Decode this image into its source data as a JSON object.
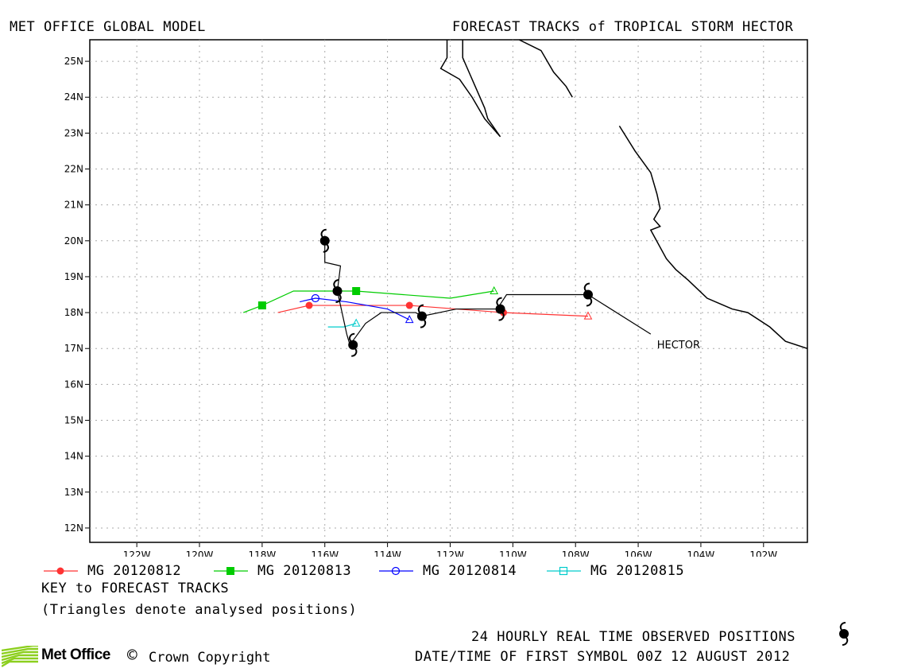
{
  "header": {
    "left_title": "MET OFFICE GLOBAL MODEL",
    "right_title": "FORECAST TRACKS of TROPICAL STORM HECTOR"
  },
  "map": {
    "lon_range": [
      -123.5,
      -100.6
    ],
    "lat_range": [
      11.6,
      25.6
    ],
    "lon_ticks": [
      {
        "value": -122,
        "label": "122W"
      },
      {
        "value": -120,
        "label": "120W"
      },
      {
        "value": -118,
        "label": "118W"
      },
      {
        "value": -116,
        "label": "116W"
      },
      {
        "value": -114,
        "label": "114W"
      },
      {
        "value": -112,
        "label": "112W"
      },
      {
        "value": -110,
        "label": "110W"
      },
      {
        "value": -108,
        "label": "108W"
      },
      {
        "value": -106,
        "label": "106W"
      },
      {
        "value": -104,
        "label": "104W"
      },
      {
        "value": -102,
        "label": "102W"
      }
    ],
    "lat_ticks": [
      {
        "value": 25,
        "label": "25N"
      },
      {
        "value": 24,
        "label": "24N"
      },
      {
        "value": 23,
        "label": "23N"
      },
      {
        "value": 22,
        "label": "22N"
      },
      {
        "value": 21,
        "label": "21N"
      },
      {
        "value": 20,
        "label": "20N"
      },
      {
        "value": 19,
        "label": "19N"
      },
      {
        "value": 18,
        "label": "18N"
      },
      {
        "value": 17,
        "label": "17N"
      },
      {
        "value": 16,
        "label": "16N"
      },
      {
        "value": 15,
        "label": "15N"
      },
      {
        "value": 14,
        "label": "14N"
      },
      {
        "value": 13,
        "label": "13N"
      },
      {
        "value": 12,
        "label": "12N"
      }
    ],
    "grid": true,
    "coastlines": [
      [
        [
          -112.1,
          25.6
        ],
        [
          -112.1,
          25.1
        ],
        [
          -112.3,
          24.8
        ],
        [
          -111.7,
          24.5
        ],
        [
          -111.3,
          24.0
        ],
        [
          -110.9,
          23.4
        ],
        [
          -110.4,
          22.9
        ],
        [
          -110.8,
          23.4
        ],
        [
          -110.9,
          23.7
        ],
        [
          -111.1,
          24.1
        ],
        [
          -111.2,
          24.3
        ],
        [
          -111.4,
          24.7
        ],
        [
          -111.6,
          25.1
        ],
        [
          -111.6,
          25.6
        ]
      ],
      [
        [
          -109.8,
          25.6
        ],
        [
          -109.1,
          25.3
        ],
        [
          -108.7,
          24.7
        ],
        [
          -108.3,
          24.3
        ],
        [
          -108.1,
          24.0
        ]
      ],
      [
        [
          -106.6,
          23.2
        ],
        [
          -106.1,
          22.5
        ],
        [
          -105.6,
          21.9
        ],
        [
          -105.4,
          21.3
        ],
        [
          -105.3,
          20.9
        ],
        [
          -105.5,
          20.6
        ],
        [
          -105.3,
          20.4
        ],
        [
          -105.6,
          20.3
        ],
        [
          -105.1,
          19.5
        ],
        [
          -104.8,
          19.2
        ],
        [
          -104.4,
          18.9
        ],
        [
          -103.8,
          18.4
        ],
        [
          -103.0,
          18.1
        ],
        [
          -102.5,
          18.0
        ],
        [
          -101.8,
          17.6
        ],
        [
          -101.3,
          17.2
        ],
        [
          -100.6,
          17.0
        ]
      ]
    ],
    "storm_label": "HECTOR",
    "storm_label_pos": {
      "lon": -105.4,
      "lat": 17.0
    },
    "observed_track": [
      {
        "lon": -116.0,
        "lat": 20.0
      },
      {
        "lon": -115.6,
        "lat": 18.6
      },
      {
        "lon": -115.1,
        "lat": 17.1
      },
      {
        "lon": -112.9,
        "lat": 17.9
      },
      {
        "lon": -110.4,
        "lat": 18.1
      },
      {
        "lon": -107.6,
        "lat": 18.5
      }
    ],
    "observed_line": [
      [
        -116.0,
        20.0
      ],
      [
        -116.0,
        19.4
      ],
      [
        -115.5,
        19.3
      ],
      [
        -115.6,
        18.6
      ],
      [
        -115.3,
        17.4
      ],
      [
        -115.2,
        17.1
      ],
      [
        -114.7,
        17.7
      ],
      [
        -114.2,
        18.0
      ],
      [
        -113.1,
        18.0
      ],
      [
        -112.9,
        17.9
      ],
      [
        -111.8,
        18.1
      ],
      [
        -110.5,
        18.1
      ],
      [
        -110.2,
        18.5
      ],
      [
        -107.6,
        18.5
      ],
      [
        -105.6,
        17.4
      ]
    ],
    "forecasts": [
      {
        "name": "MG 20120812",
        "color": "#ff3333",
        "marker": "filled-circle",
        "points": [
          [
            -107.6,
            17.9
          ],
          [
            -110.3,
            18.0
          ],
          [
            -113.3,
            18.2
          ],
          [
            -116.5,
            18.2
          ],
          [
            -117.5,
            18.0
          ]
        ],
        "markers": [
          [
            -110.3,
            18.0
          ],
          [
            -113.3,
            18.2
          ],
          [
            -116.5,
            18.2
          ]
        ],
        "analysed": [
          -107.6,
          17.9
        ]
      },
      {
        "name": "MG 20120813",
        "color": "#00cc00",
        "marker": "filled-square",
        "points": [
          [
            -110.6,
            18.6
          ],
          [
            -112.0,
            18.4
          ],
          [
            -115.0,
            18.6
          ],
          [
            -117.0,
            18.6
          ],
          [
            -118.0,
            18.2
          ],
          [
            -118.6,
            18.0
          ]
        ],
        "markers": [
          [
            -115.0,
            18.6
          ],
          [
            -118.0,
            18.2
          ]
        ],
        "analysed": [
          -110.6,
          18.6
        ]
      },
      {
        "name": "MG 20120814",
        "color": "#0000ff",
        "marker": "open-circle",
        "points": [
          [
            -113.3,
            17.8
          ],
          [
            -114.0,
            18.1
          ],
          [
            -115.3,
            18.3
          ],
          [
            -116.3,
            18.4
          ],
          [
            -116.8,
            18.3
          ]
        ],
        "markers": [
          [
            -116.3,
            18.4
          ]
        ],
        "analysed": [
          -113.3,
          17.8
        ]
      },
      {
        "name": "MG 20120815",
        "color": "#00cccc",
        "marker": "open-square",
        "points": [
          [
            -115.0,
            17.7
          ],
          [
            -115.4,
            17.6
          ],
          [
            -115.9,
            17.6
          ]
        ],
        "markers": [],
        "analysed": [
          -115.0,
          17.7
        ]
      }
    ]
  },
  "legend": {
    "items": [
      {
        "label": "MG 20120812",
        "color": "#ff3333",
        "marker": "filled-circle"
      },
      {
        "label": "MG 20120813",
        "color": "#00cc00",
        "marker": "filled-square"
      },
      {
        "label": "MG 20120814",
        "color": "#0000ff",
        "marker": "open-circle"
      },
      {
        "label": "MG 20120815",
        "color": "#00cccc",
        "marker": "open-square"
      }
    ],
    "key_title": "KEY to FORECAST TRACKS",
    "key_note": "(Triangles denote analysed positions)"
  },
  "footer": {
    "observed_note": "24 HOURLY REAL TIME OBSERVED POSITIONS",
    "first_symbol_note": "DATE/TIME OF FIRST SYMBOL 00Z 12 AUGUST 2012",
    "logo_text": "Met Office",
    "copyright_text": "Crown Copyright",
    "copyright_symbol": "©",
    "logo_color": "#8ccf1e"
  }
}
